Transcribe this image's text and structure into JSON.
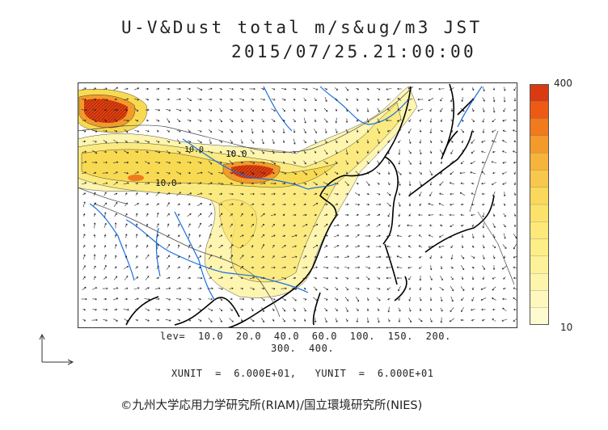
{
  "header": {
    "title": "U-V&Dust total m/s&ug/m3 JST",
    "datetime": "2015/07/25.21:00:00"
  },
  "colorbar": {
    "max_label": "400",
    "min_label": "10",
    "colors": [
      "#d93a12",
      "#ee5a14",
      "#f07a1c",
      "#f39a2a",
      "#f6b43a",
      "#f8c84c",
      "#f9d85c",
      "#fbe36a",
      "#fce97a",
      "#fdee88",
      "#fdf29a",
      "#fdf5ac",
      "#fef8be",
      "#fefbd0"
    ]
  },
  "contour_labels": [
    "10.0",
    "10.0",
    "10.0"
  ],
  "levels_line1": "lev=  10.0  20.0  40.0  60.0  100.  150.  200.",
  "levels_line2": "300.  400.",
  "units_line": "XUNIT  =  6.000E+01,   YUNIT  =  6.000E+01",
  "copyright": "©九州大学応用力学研究所(RIAM)/国立環境研究所(NIES)",
  "palette": {
    "coast": "#000000",
    "river": "#1a6ee0",
    "border": "#444444",
    "dust_low": "#fdf5b0",
    "dust_mid": "#f8e060",
    "dust_high": "#e04010"
  }
}
